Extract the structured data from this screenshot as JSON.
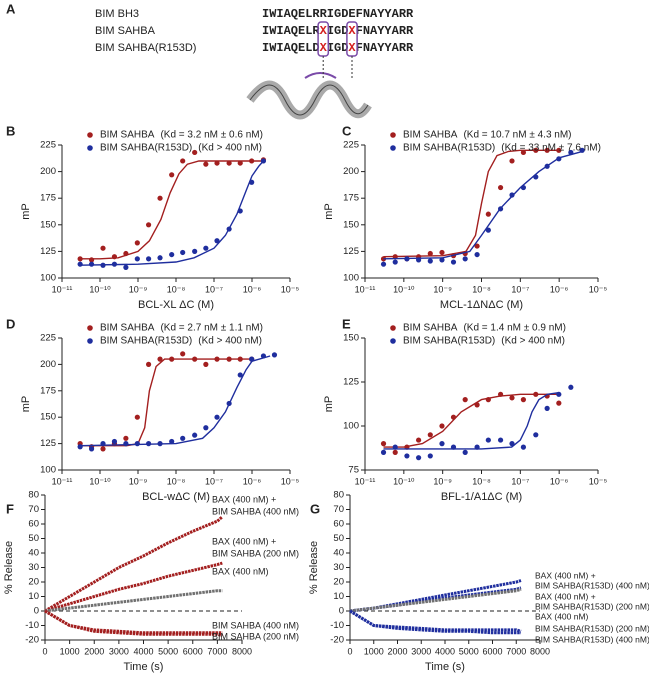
{
  "panel_a": {
    "label": "A",
    "rows": [
      {
        "name": "BIM BH3",
        "sequence": "IWIAQELRRIGDEFNAYYARR",
        "color": "#8a8a8a"
      },
      {
        "name": "BIM SAHBA",
        "sequence": "IWIAQELRXIGDXFNAYYARR",
        "color": "#a31f1f"
      },
      {
        "name": "BIM SAHBA(R153D)",
        "sequence": "IWIAQELDXIGDXFNAYYARR",
        "color": "#1f2e9e"
      }
    ]
  },
  "chart_data": [
    {
      "panel": "B",
      "type": "scatter",
      "xscale": "log",
      "xlim": [
        1e-11,
        1e-05
      ],
      "xticks": [
        {
          "value": 1e-11,
          "label": "10⁻¹¹"
        },
        {
          "value": 1e-10,
          "label": "10⁻¹⁰"
        },
        {
          "value": 1e-09,
          "label": "10⁻⁹"
        },
        {
          "value": 1e-08,
          "label": "10⁻⁸"
        },
        {
          "value": 1e-07,
          "label": "10⁻⁷"
        },
        {
          "value": 1e-06,
          "label": "10⁻⁶"
        },
        {
          "value": 1e-05,
          "label": "10⁻⁵"
        }
      ],
      "ylim": [
        100,
        225
      ],
      "yticks": [
        100,
        125,
        150,
        175,
        200,
        225
      ],
      "xlabel": "BCL-XL ΔC (M)",
      "ylabel": "mP",
      "x": [
        3e-11,
        6e-11,
        1.2e-10,
        2.4e-10,
        4.8e-10,
        9.6e-10,
        1.9e-09,
        3.8e-09,
        7.7e-09,
        1.5e-08,
        3.1e-08,
        6.1e-08,
        1.2e-07,
        2.5e-07,
        4.9e-07,
        9.8e-07,
        2e-06
      ],
      "series": [
        {
          "name": "BIM SAHBA",
          "kd_label": "(Kd = 3.2 nM ± 0.6 nM)",
          "color": "#a31f1f",
          "values": [
            118,
            117,
            128,
            120,
            123,
            133,
            150,
            175,
            197,
            210,
            218,
            207,
            208,
            208,
            208,
            210,
            211
          ],
          "fit": {
            "x": [
              3e-11,
              1e-10,
              3e-10,
              1e-09,
              2e-09,
              4e-09,
              7e-09,
              1.2e-08,
              2e-08,
              4e-08,
              1e-07,
              1e-06,
              2e-06
            ],
            "values": [
              118,
              118,
              119,
              125,
              135,
              155,
              180,
              198,
              207,
              210,
              210,
              210,
              210
            ]
          }
        },
        {
          "name": "BIM SAHBA(R153D)",
          "kd_label": "(Kd > 400 nM)",
          "color": "#1f2e9e",
          "values": [
            113,
            113,
            112,
            113,
            110,
            118,
            118,
            119,
            122,
            124,
            125,
            128,
            135,
            146,
            163,
            190,
            210
          ],
          "fit": {
            "x": [
              3e-11,
              1e-09,
              1e-08,
              3e-08,
              1e-07,
              2e-07,
              4e-07,
              7e-07,
              1e-06,
              1.5e-06,
              2e-06
            ],
            "values": [
              112,
              113,
              115,
              119,
              128,
              140,
              160,
              182,
              196,
              205,
              210
            ]
          }
        }
      ]
    },
    {
      "panel": "C",
      "type": "scatter",
      "xscale": "log",
      "xlim": [
        1e-11,
        1e-05
      ],
      "xticks": [
        {
          "value": 1e-11,
          "label": "10⁻¹¹"
        },
        {
          "value": 1e-10,
          "label": "10⁻¹⁰"
        },
        {
          "value": 1e-09,
          "label": "10⁻⁹"
        },
        {
          "value": 1e-08,
          "label": "10⁻⁸"
        },
        {
          "value": 1e-07,
          "label": "10⁻⁷"
        },
        {
          "value": 1e-06,
          "label": "10⁻⁶"
        },
        {
          "value": 1e-05,
          "label": "10⁻⁵"
        }
      ],
      "ylim": [
        100,
        225
      ],
      "yticks": [
        100,
        125,
        150,
        175,
        200,
        225
      ],
      "xlabel": "MCL-1ΔNΔC (M)",
      "ylabel": "mP",
      "x": [
        3e-11,
        6e-11,
        1.2e-10,
        2.4e-10,
        4.8e-10,
        9.6e-10,
        1.9e-09,
        3.8e-09,
        7.7e-09,
        1.5e-08,
        3.1e-08,
        6.1e-08,
        1.2e-07,
        2.5e-07,
        4.9e-07,
        9.8e-07,
        2e-06,
        3.9e-06
      ],
      "series": [
        {
          "name": "BIM SAHBA",
          "kd_label": "(Kd = 10.7 nM ± 4.3 nM)",
          "color": "#a31f1f",
          "values": [
            118,
            120,
            118,
            120,
            123,
            124,
            121,
            123,
            130,
            160,
            185,
            210,
            218,
            220,
            220,
            220,
            null,
            null
          ],
          "fit": {
            "x": [
              3e-11,
              1e-09,
              4e-09,
              7e-09,
              1e-08,
              1.5e-08,
              2.5e-08,
              5e-08,
              1e-07,
              1e-06
            ],
            "values": [
              120,
              121,
              125,
              140,
              170,
              200,
              215,
              219,
              220,
              220
            ]
          }
        },
        {
          "name": "BIM SAHBA(R153D)",
          "kd_label": "(Kd = 33 nM ± 7.6 nM)",
          "color": "#1f2e9e",
          "values": [
            113,
            115,
            118,
            117,
            116,
            117,
            115,
            118,
            122,
            145,
            165,
            178,
            185,
            195,
            205,
            212,
            218,
            220
          ],
          "fit": {
            "x": [
              3e-11,
              1e-09,
              5e-09,
              1e-08,
              3e-08,
              1e-07,
              3e-07,
              1e-06,
              4e-06
            ],
            "values": [
              118,
              119,
              125,
              140,
              165,
              185,
              200,
              213,
              219
            ]
          }
        }
      ]
    },
    {
      "panel": "D",
      "type": "scatter",
      "xscale": "log",
      "xlim": [
        1e-11,
        1e-05
      ],
      "xticks": [
        {
          "value": 1e-11,
          "label": "10⁻¹¹"
        },
        {
          "value": 1e-10,
          "label": "10⁻¹⁰"
        },
        {
          "value": 1e-09,
          "label": "10⁻⁹"
        },
        {
          "value": 1e-08,
          "label": "10⁻⁸"
        },
        {
          "value": 1e-07,
          "label": "10⁻⁷"
        },
        {
          "value": 1e-06,
          "label": "10⁻⁶"
        },
        {
          "value": 1e-05,
          "label": "10⁻⁵"
        }
      ],
      "ylim": [
        100,
        225
      ],
      "yticks": [
        100,
        125,
        150,
        175,
        200,
        225
      ],
      "xlabel": "BCL-wΔC (M)",
      "ylabel": "mP",
      "x": [
        3e-11,
        6e-11,
        1.2e-10,
        2.4e-10,
        4.8e-10,
        9.6e-10,
        1.9e-09,
        3.8e-09,
        7.7e-09,
        1.5e-08,
        3.1e-08,
        6.1e-08,
        1.2e-07,
        2.5e-07,
        4.9e-07,
        9.8e-07,
        2e-06,
        3.9e-06
      ],
      "series": [
        {
          "name": "BIM SAHBA",
          "kd_label": "(Kd = 2.7 nM ± 1.1 nM)",
          "color": "#a31f1f",
          "values": [
            125,
            122,
            120,
            125,
            130,
            150,
            200,
            205,
            205,
            210,
            205,
            200,
            205,
            205,
            205,
            205,
            null,
            null
          ],
          "fit": {
            "x": [
              3e-11,
              5e-10,
              1e-09,
              1.5e-09,
              2e-09,
              3e-09,
              5e-09,
              1e-07,
              1e-06
            ],
            "values": [
              123,
              123,
              125,
              140,
              175,
              198,
              205,
              205,
              205
            ]
          }
        },
        {
          "name": "BIM SAHBA(R153D)",
          "kd_label": "(Kd > 400 nM)",
          "color": "#1f2e9e",
          "values": [
            122,
            120,
            125,
            127,
            125,
            125,
            125,
            125,
            127,
            130,
            133,
            140,
            150,
            163,
            190,
            205,
            208,
            209
          ],
          "fit": {
            "x": [
              3e-11,
              1e-08,
              5e-08,
              1e-07,
              2e-07,
              4e-07,
              7e-07,
              1e-06,
              3e-06
            ],
            "values": [
              123,
              125,
              130,
              140,
              155,
              178,
              195,
              203,
              208
            ]
          }
        }
      ]
    },
    {
      "panel": "E",
      "type": "scatter",
      "xscale": "log",
      "xlim": [
        1e-11,
        1e-05
      ],
      "xticks": [
        {
          "value": 1e-11,
          "label": "10⁻¹¹"
        },
        {
          "value": 1e-10,
          "label": "10⁻¹⁰"
        },
        {
          "value": 1e-09,
          "label": "10⁻⁹"
        },
        {
          "value": 1e-08,
          "label": "10⁻⁸"
        },
        {
          "value": 1e-07,
          "label": "10⁻⁷"
        },
        {
          "value": 1e-06,
          "label": "10⁻⁶"
        },
        {
          "value": 1e-05,
          "label": "10⁻⁵"
        }
      ],
      "ylim": [
        75,
        150
      ],
      "yticks": [
        75,
        100,
        125,
        150
      ],
      "xlabel": "BFL-1/A1ΔC (M)",
      "ylabel": "mP",
      "x": [
        3e-11,
        6e-11,
        1.2e-10,
        2.4e-10,
        4.8e-10,
        9.6e-10,
        1.9e-09,
        3.8e-09,
        7.7e-09,
        1.5e-08,
        3.1e-08,
        6.1e-08,
        1.2e-07,
        2.5e-07,
        4.9e-07,
        9.8e-07,
        2e-06
      ],
      "series": [
        {
          "name": "BIM SAHBA",
          "kd_label": "(Kd = 1.4 nM ± 0.9 nM)",
          "color": "#a31f1f",
          "values": [
            90,
            85,
            88,
            92,
            95,
            100,
            105,
            115,
            112,
            115,
            118,
            116,
            115,
            118,
            117,
            113,
            null
          ],
          "fit": {
            "x": [
              3e-11,
              1e-10,
              3e-10,
              1e-09,
              3e-09,
              1e-08,
              3e-08,
              1e-07,
              1e-06
            ],
            "values": [
              88,
              88,
              90,
              97,
              108,
              115,
              117,
              118,
              118
            ]
          }
        },
        {
          "name": "BIM SAHBA(R153D)",
          "kd_label": "(Kd > 400 nM)",
          "color": "#1f2e9e",
          "values": [
            85,
            88,
            83,
            82,
            83,
            90,
            88,
            85,
            88,
            92,
            92,
            90,
            88,
            95,
            110,
            118,
            122
          ],
          "fit": {
            "x": [
              3e-11,
              1e-08,
              6e-08,
              1e-07,
              1.5e-07,
              2e-07,
              3e-07,
              5e-07,
              1e-06
            ],
            "values": [
              87,
              87,
              88,
              92,
              100,
              108,
              115,
              118,
              119
            ]
          }
        }
      ]
    },
    {
      "panel": "F",
      "type": "line",
      "xlim": [
        0,
        8000
      ],
      "xticks": [
        0,
        1000,
        2000,
        3000,
        4000,
        5000,
        6000,
        7000,
        8000
      ],
      "ylim": [
        -20,
        80
      ],
      "yticks": [
        -20,
        -10,
        0,
        10,
        20,
        30,
        40,
        50,
        60,
        70,
        80
      ],
      "xlabel": "Time (s)",
      "ylabel": "% Release",
      "zero_line": true,
      "x": [
        0,
        1000,
        2000,
        3000,
        4000,
        5000,
        6000,
        7000,
        7200
      ],
      "series": [
        {
          "labels": [
            "BAX (400 nM) +",
            "BIM SAHBA (400 nM)"
          ],
          "color": "#a31f1f",
          "values": [
            0,
            10,
            20,
            30,
            38,
            47,
            55,
            62,
            65
          ]
        },
        {
          "labels": [
            "BAX (400 nM) +",
            "BIM SAHBA (200 nM)"
          ],
          "color": "#a31f1f",
          "values": [
            0,
            5,
            10,
            15,
            19,
            24,
            28,
            32,
            33
          ]
        },
        {
          "labels": [
            "BAX (400 nM)"
          ],
          "color": "#707070",
          "values": [
            0,
            2,
            4,
            6,
            8,
            10,
            12,
            14,
            14
          ]
        },
        {
          "labels": [
            "BIM SAHBA (400 nM)"
          ],
          "color": "#a31f1f",
          "values": [
            0,
            -10,
            -13,
            -14,
            -15,
            -15,
            -15,
            -15,
            -15
          ]
        },
        {
          "labels": [
            "BIM SAHBA (200 nM)"
          ],
          "color": "#a31f1f",
          "values": [
            0,
            -10,
            -14,
            -15,
            -16,
            -16,
            -16,
            -16,
            -17
          ]
        }
      ]
    },
    {
      "panel": "G",
      "type": "line",
      "xlim": [
        0,
        8000
      ],
      "xticks": [
        0,
        1000,
        2000,
        3000,
        4000,
        5000,
        6000,
        7000,
        8000
      ],
      "ylim": [
        -20,
        80
      ],
      "yticks": [
        -20,
        -10,
        0,
        10,
        20,
        30,
        40,
        50,
        60,
        70,
        80
      ],
      "xlabel": "Time (s)",
      "ylabel": "% Release",
      "zero_line": true,
      "x": [
        0,
        1000,
        2000,
        3000,
        4000,
        5000,
        6000,
        7000,
        7200
      ],
      "series": [
        {
          "labels": [
            "BAX (400 nM) +",
            "BIM SAHBA(R153D) (400 nM)"
          ],
          "color": "#1f2e9e",
          "values": [
            0,
            2,
            5,
            8,
            11,
            14,
            17,
            20,
            21
          ]
        },
        {
          "labels": [
            "BAX (400 nM) +",
            "BIM SAHBA(R153D) (200 nM)"
          ],
          "color": "#1f2e9e",
          "values": [
            0,
            2,
            4,
            7,
            9,
            11,
            13,
            15,
            16
          ]
        },
        {
          "labels": [
            "BAX (400 nM)"
          ],
          "color": "#707070",
          "values": [
            0,
            2,
            4,
            6,
            8,
            10,
            12,
            14,
            15
          ]
        },
        {
          "labels": [
            "BIM SAHBA(R153D) (200 nM)"
          ],
          "color": "#1f2e9e",
          "values": [
            0,
            -10,
            -11,
            -12,
            -13,
            -13,
            -13,
            -13,
            -14
          ]
        },
        {
          "labels": [
            "BIM SAHBA(R153D) (400 nM)"
          ],
          "color": "#1f2e9e",
          "values": [
            0,
            -10,
            -12,
            -13,
            -14,
            -14,
            -15,
            -15,
            -15
          ]
        }
      ]
    }
  ]
}
